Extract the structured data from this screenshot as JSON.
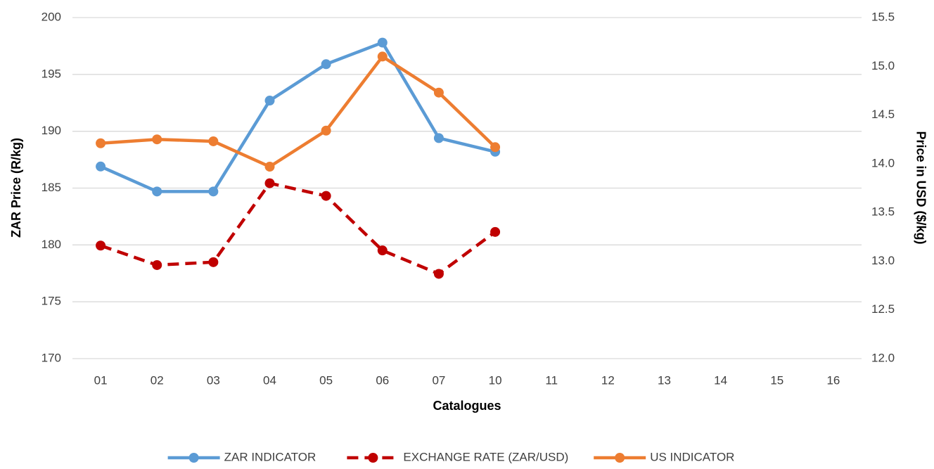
{
  "chart_data": {
    "type": "line",
    "x_label": "Catalogues",
    "y_label": "ZAR Price (R/kg)",
    "y2_label": "Price in USD ($/kg)",
    "categories": [
      "01",
      "02",
      "03",
      "04",
      "05",
      "06",
      "07",
      "10",
      "11",
      "12",
      "13",
      "14",
      "15",
      "16"
    ],
    "series": [
      {
        "name": "ZAR INDICATOR",
        "color": "#5b9bd5",
        "dashed": false,
        "values": [
          186.9,
          184.7,
          184.7,
          192.7,
          195.9,
          197.8,
          189.4,
          188.2,
          null,
          null,
          null,
          null,
          null,
          null
        ]
      },
      {
        "name": "EXCHANGE RATE (ZAR/USD)",
        "color": "#c00000",
        "dashed": true,
        "axis": "y2",
        "values": [
          13.16,
          12.96,
          12.99,
          13.8,
          13.67,
          13.11,
          12.87,
          13.3,
          null,
          null,
          null,
          null,
          null,
          null
        ]
      },
      {
        "name": "US INDICATOR",
        "color": "#ed7d31",
        "dashed": false,
        "axis": "y2",
        "values": [
          14.21,
          14.25,
          14.23,
          13.97,
          14.34,
          15.1,
          14.73,
          14.17,
          null,
          null,
          null,
          null,
          null,
          null
        ]
      }
    ],
    "ylim": [
      170,
      200
    ],
    "yticks": [
      170,
      175,
      180,
      185,
      190,
      195,
      200
    ],
    "y2lim": [
      12,
      15.5
    ],
    "y2ticks": [
      {
        "value": 12,
        "label": "12.0"
      },
      12.5,
      {
        "value": 13,
        "label": "13.0"
      },
      13.5,
      {
        "value": 14,
        "label": "14.0"
      },
      14.5,
      {
        "value": 15,
        "label": "15.0"
      },
      15.5
    ],
    "grid": true,
    "legend": "bottom"
  }
}
